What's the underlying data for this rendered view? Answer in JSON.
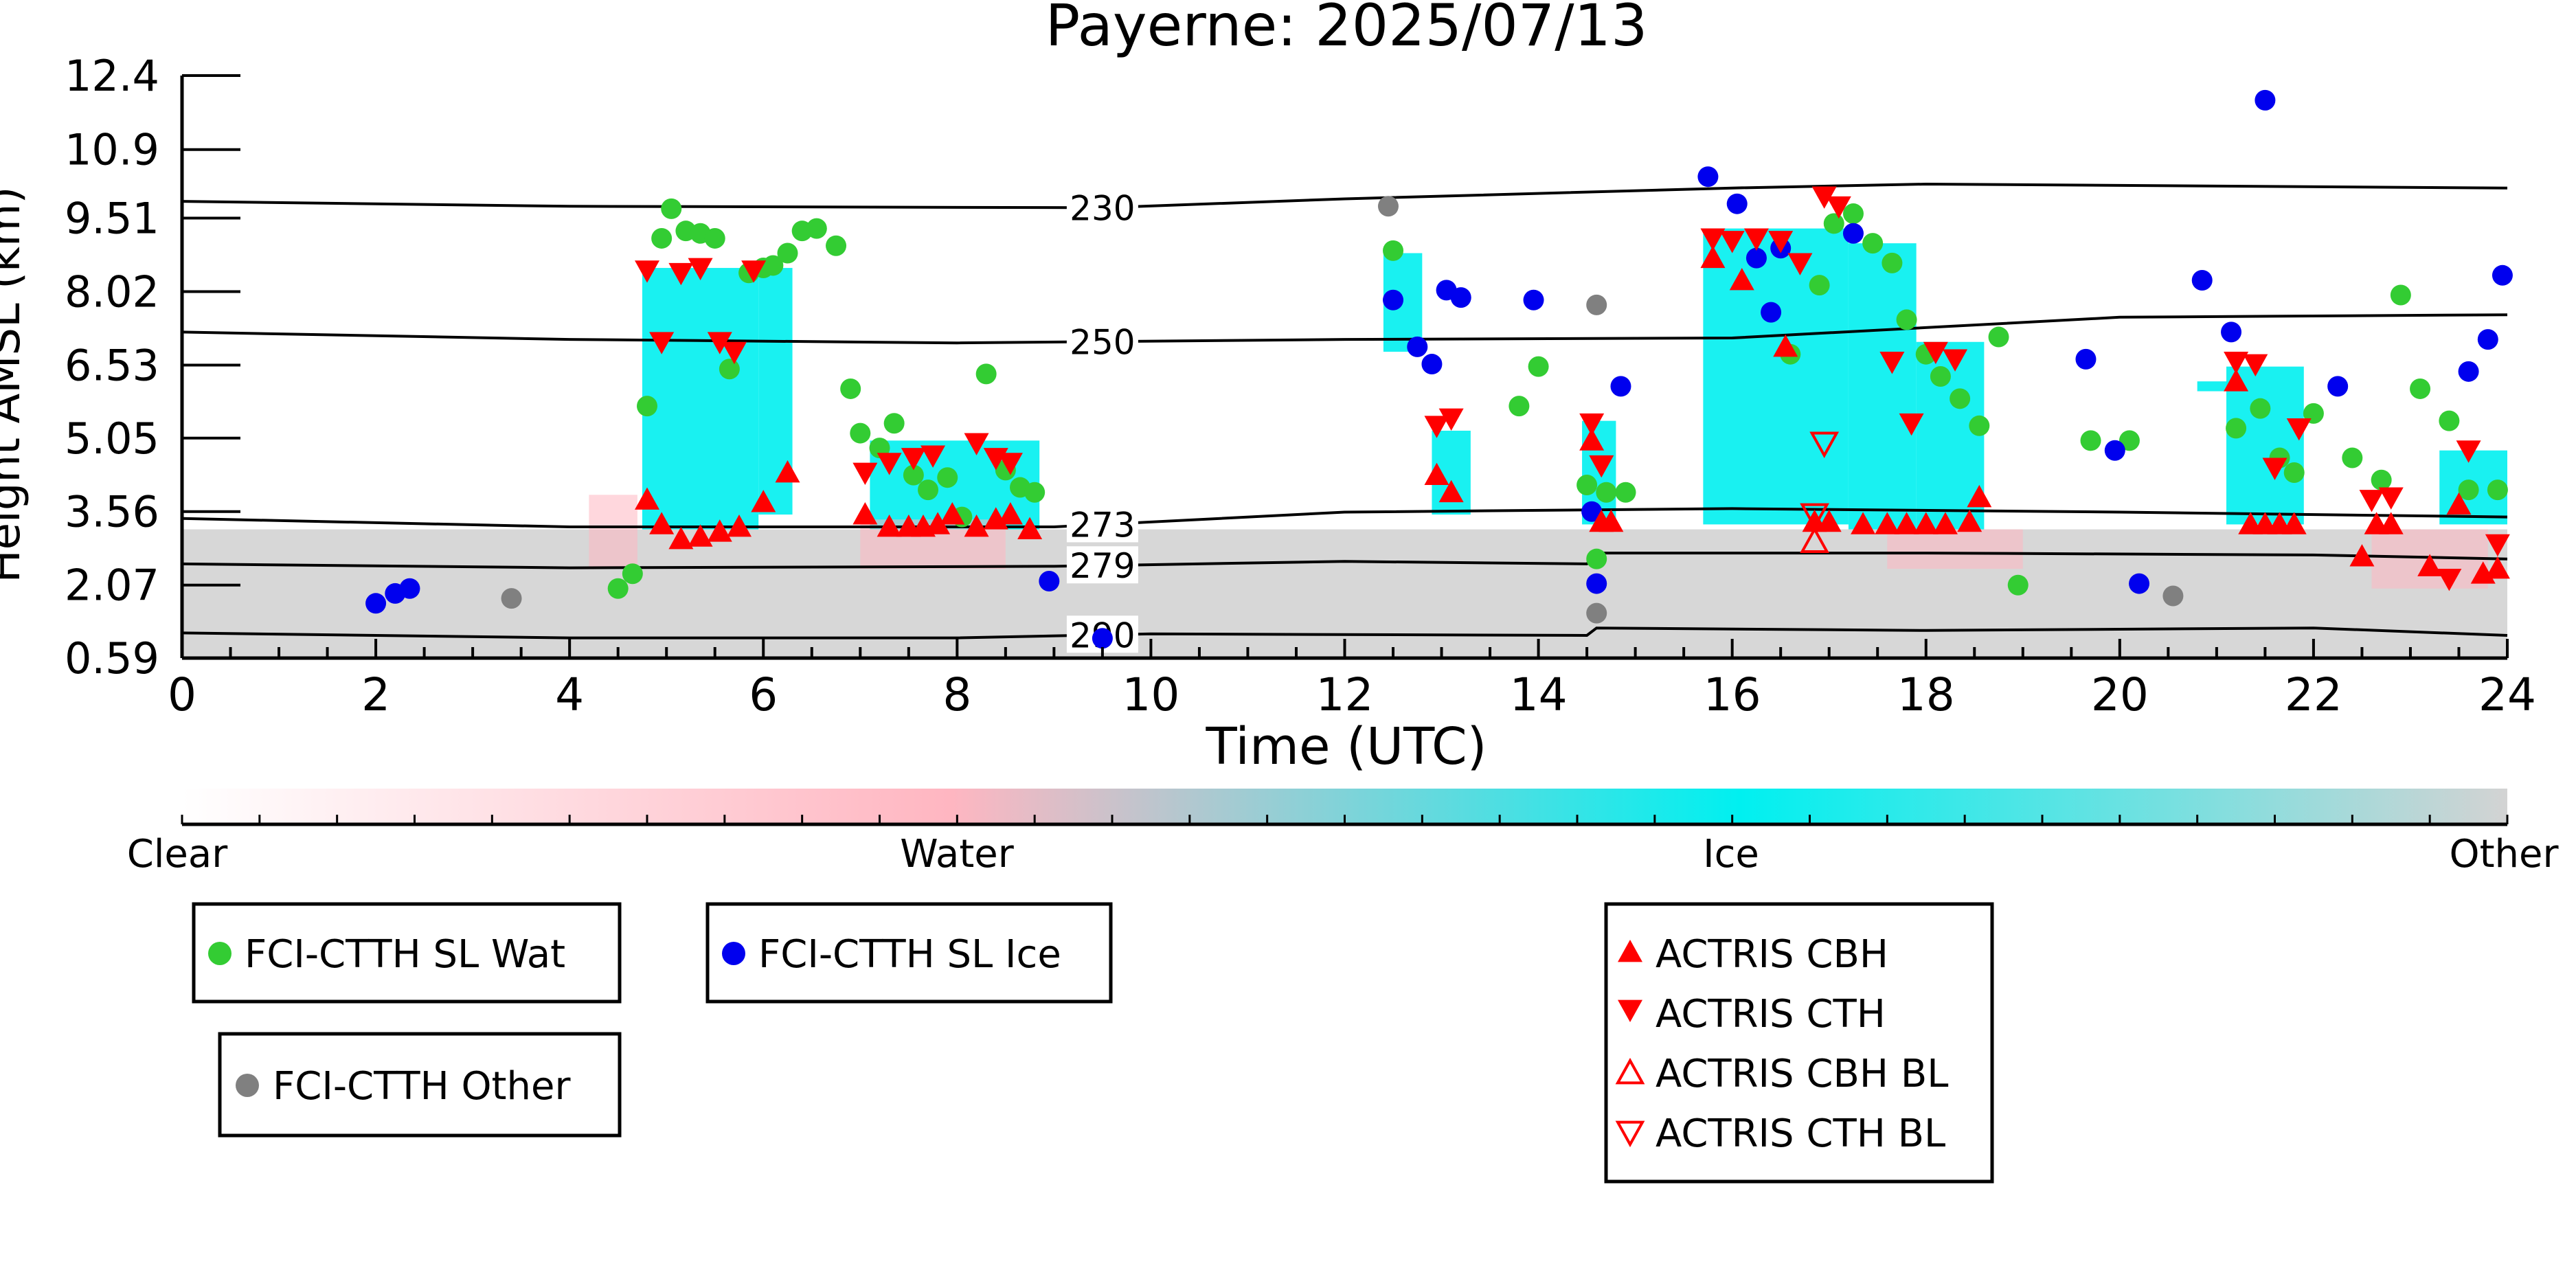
{
  "chart_data": {
    "type": "scatter",
    "title": "Payerne: 2025/07/13",
    "xlabel": "Time (UTC)",
    "ylabel": "Height AMSL (km)",
    "xlim": [
      0,
      24
    ],
    "ylim": [
      0.59,
      12.4
    ],
    "x_ticks": [
      0,
      2,
      4,
      6,
      8,
      10,
      12,
      14,
      16,
      18,
      20,
      22,
      24
    ],
    "y_ticks": [
      "0.59",
      "2.07",
      "3.56",
      "5.05",
      "6.53",
      "8.02",
      "9.51",
      "10.9",
      "12.4"
    ],
    "colorbar": {
      "labels": [
        "Clear",
        "Water",
        "Ice",
        "Other"
      ],
      "colors": {
        "clear": "#ffffff",
        "water": "#ffb6c1",
        "ice": "#00f0f0",
        "other": "#d3d3d3"
      }
    },
    "isotherms": [
      {
        "label": "230",
        "points": [
          [
            0,
            9.85
          ],
          [
            4,
            9.75
          ],
          [
            9.5,
            9.72
          ],
          [
            12,
            9.9
          ],
          [
            16,
            10.12
          ],
          [
            18,
            10.2
          ],
          [
            24,
            10.12
          ]
        ]
      },
      {
        "label": "250",
        "points": [
          [
            0,
            7.2
          ],
          [
            4,
            7.05
          ],
          [
            8,
            6.98
          ],
          [
            12,
            7.05
          ],
          [
            16,
            7.08
          ],
          [
            20,
            7.5
          ],
          [
            24,
            7.55
          ]
        ]
      },
      {
        "label": "273",
        "points": [
          [
            0,
            3.42
          ],
          [
            4,
            3.25
          ],
          [
            9,
            3.25
          ],
          [
            12,
            3.55
          ],
          [
            16,
            3.62
          ],
          [
            20,
            3.55
          ],
          [
            24,
            3.45
          ]
        ]
      },
      {
        "label": "279",
        "points": [
          [
            0,
            2.5
          ],
          [
            4,
            2.42
          ],
          [
            9,
            2.45
          ],
          [
            12,
            2.55
          ],
          [
            14.5,
            2.5
          ],
          [
            14.6,
            2.72
          ],
          [
            18,
            2.72
          ],
          [
            22,
            2.68
          ],
          [
            24,
            2.6
          ]
        ]
      },
      {
        "label": "290",
        "points": [
          [
            0,
            1.1
          ],
          [
            4,
            1.0
          ],
          [
            8,
            1.0
          ],
          [
            10,
            1.08
          ],
          [
            14.5,
            1.05
          ],
          [
            14.6,
            1.2
          ],
          [
            18,
            1.15
          ],
          [
            22,
            1.2
          ],
          [
            24,
            1.05
          ]
        ]
      }
    ],
    "classification_regions": [
      {
        "class": "other",
        "x": [
          0,
          24
        ],
        "y": [
          0.59,
          3.2
        ]
      },
      {
        "class": "ice",
        "x": [
          4.75,
          5.95
        ],
        "y": [
          3.2,
          8.5
        ]
      },
      {
        "class": "ice",
        "x": [
          5.95,
          6.3
        ],
        "y": [
          3.5,
          8.5
        ]
      },
      {
        "class": "ice",
        "x": [
          7.1,
          8.85
        ],
        "y": [
          3.2,
          5.0
        ]
      },
      {
        "class": "ice",
        "x": [
          12.4,
          12.8
        ],
        "y": [
          6.8,
          8.8
        ]
      },
      {
        "class": "ice",
        "x": [
          12.9,
          13.3
        ],
        "y": [
          3.5,
          5.2
        ]
      },
      {
        "class": "ice",
        "x": [
          14.45,
          14.8
        ],
        "y": [
          3.3,
          5.4
        ]
      },
      {
        "class": "ice",
        "x": [
          15.7,
          17.2
        ],
        "y": [
          3.3,
          9.3
        ]
      },
      {
        "class": "ice",
        "x": [
          17.2,
          17.9
        ],
        "y": [
          3.2,
          9.0
        ]
      },
      {
        "class": "ice",
        "x": [
          17.9,
          18.6
        ],
        "y": [
          3.2,
          7.0
        ]
      },
      {
        "class": "ice",
        "x": [
          20.8,
          21.2
        ],
        "y": [
          6.0,
          6.2
        ]
      },
      {
        "class": "ice",
        "x": [
          21.1,
          21.9
        ],
        "y": [
          3.3,
          6.5
        ]
      },
      {
        "class": "ice",
        "x": [
          23.3,
          24
        ],
        "y": [
          3.3,
          4.8
        ]
      },
      {
        "class": "water",
        "x": [
          4.2,
          4.7
        ],
        "y": [
          2.4,
          3.9
        ]
      },
      {
        "class": "water",
        "x": [
          7.0,
          8.5
        ],
        "y": [
          2.4,
          3.4
        ]
      },
      {
        "class": "water",
        "x": [
          17.6,
          19.0
        ],
        "y": [
          2.4,
          3.2
        ]
      },
      {
        "class": "water",
        "x": [
          22.6,
          23.8
        ],
        "y": [
          2.0,
          3.2
        ]
      }
    ],
    "series": [
      {
        "name": "FCI-CTTH SL Wat",
        "color": "#33cc33",
        "marker": "circle",
        "x": [
          4.5,
          4.65,
          4.8,
          4.95,
          5.05,
          5.2,
          5.35,
          5.5,
          5.65,
          5.85,
          6.0,
          6.1,
          6.25,
          6.4,
          6.55,
          6.75,
          6.9,
          7.0,
          7.2,
          7.35,
          7.55,
          7.7,
          7.9,
          8.05,
          8.3,
          8.5,
          8.65,
          8.8,
          12.5,
          14.0,
          13.8,
          14.5,
          14.6,
          14.7,
          14.9,
          16.6,
          16.9,
          17.05,
          17.25,
          17.45,
          17.65,
          17.8,
          18.0,
          18.15,
          18.35,
          18.55,
          18.75,
          18.95,
          19.7,
          20.1,
          21.2,
          21.45,
          21.65,
          21.8,
          22.0,
          22.4,
          22.7,
          22.9,
          23.1,
          23.4,
          23.6,
          23.9
        ],
        "y": [
          2.0,
          2.3,
          5.7,
          9.1,
          9.7,
          9.25,
          9.2,
          9.1,
          6.45,
          8.4,
          8.5,
          8.55,
          8.8,
          9.25,
          9.3,
          8.95,
          6.05,
          5.15,
          4.85,
          5.35,
          4.3,
          4.0,
          4.25,
          3.45,
          6.35,
          4.4,
          4.05,
          3.95,
          8.85,
          6.5,
          5.7,
          4.1,
          2.6,
          3.95,
          3.95,
          6.75,
          8.15,
          9.4,
          9.6,
          9.0,
          8.6,
          7.45,
          6.75,
          6.3,
          5.85,
          5.3,
          7.1,
          2.07,
          5.0,
          5.0,
          5.25,
          5.65,
          4.65,
          4.35,
          5.55,
          4.65,
          4.2,
          7.95,
          6.05,
          5.4,
          4.0,
          4.0
        ]
      },
      {
        "name": "FCI-CTTH SL Ice",
        "color": "#0000ee",
        "marker": "circle",
        "x": [
          2.0,
          2.2,
          2.35,
          8.95,
          9.5,
          12.5,
          12.75,
          12.9,
          13.05,
          13.2,
          13.95,
          14.55,
          14.6,
          14.85,
          15.75,
          16.05,
          16.25,
          16.4,
          16.5,
          17.25,
          19.65,
          19.95,
          20.2,
          20.85,
          21.15,
          21.5,
          22.25,
          23.6,
          23.8,
          23.95
        ],
        "y": [
          1.7,
          1.9,
          2.0,
          2.15,
          0.99,
          7.85,
          6.9,
          6.55,
          8.05,
          7.9,
          7.85,
          3.56,
          2.1,
          6.1,
          10.35,
          9.8,
          8.7,
          7.6,
          8.9,
          9.2,
          6.65,
          4.8,
          2.1,
          8.25,
          7.2,
          11.9,
          6.1,
          6.4,
          7.05,
          8.35
        ]
      },
      {
        "name": "FCI-CTTH Other",
        "color": "#808080",
        "marker": "circle",
        "x": [
          3.4,
          12.45,
          14.6,
          14.6,
          20.55
        ],
        "y": [
          1.8,
          9.75,
          7.75,
          1.5,
          1.85
        ]
      },
      {
        "name": "ACTRIS CBH",
        "color": "#ff0000",
        "marker": "triangle-up",
        "x": [
          4.8,
          4.95,
          5.15,
          5.35,
          5.55,
          5.75,
          6.0,
          6.25,
          7.05,
          7.3,
          7.5,
          7.65,
          7.8,
          7.95,
          8.2,
          8.4,
          8.55,
          8.75,
          12.95,
          13.1,
          14.55,
          14.65,
          14.75,
          15.8,
          16.1,
          16.55,
          16.85,
          17.0,
          17.35,
          17.6,
          17.8,
          18.0,
          18.2,
          18.45,
          18.55,
          21.2,
          21.35,
          21.5,
          21.65,
          21.8,
          22.5,
          22.65,
          22.8,
          23.2,
          23.5,
          23.75,
          23.9
        ],
        "y": [
          3.8,
          3.3,
          3.0,
          3.05,
          3.15,
          3.25,
          3.75,
          4.35,
          3.5,
          3.25,
          3.25,
          3.25,
          3.3,
          3.5,
          3.25,
          3.4,
          3.5,
          3.2,
          4.3,
          3.95,
          5.0,
          3.35,
          3.35,
          8.7,
          8.25,
          6.9,
          3.35,
          3.35,
          3.3,
          3.3,
          3.3,
          3.3,
          3.3,
          3.35,
          3.85,
          6.2,
          3.3,
          3.3,
          3.3,
          3.3,
          2.65,
          3.3,
          3.3,
          2.45,
          3.7,
          2.3,
          2.4
        ]
      },
      {
        "name": "ACTRIS CTH",
        "color": "#ff0000",
        "marker": "triangle-down",
        "x": [
          4.8,
          4.95,
          5.15,
          5.35,
          5.55,
          5.7,
          5.9,
          7.05,
          7.3,
          7.55,
          7.75,
          8.2,
          8.4,
          8.55,
          12.95,
          13.1,
          14.55,
          14.65,
          15.8,
          16.0,
          16.25,
          16.5,
          16.7,
          16.95,
          17.1,
          17.65,
          17.85,
          18.1,
          18.3,
          21.2,
          21.4,
          21.6,
          21.85,
          22.6,
          22.8,
          23.4,
          23.6,
          23.9
        ],
        "y": [
          8.45,
          7.0,
          8.4,
          8.5,
          7.0,
          6.8,
          8.45,
          4.35,
          4.55,
          4.65,
          4.7,
          4.95,
          4.65,
          4.55,
          5.3,
          5.45,
          5.35,
          4.5,
          9.1,
          9.05,
          9.1,
          9.05,
          8.6,
          9.95,
          9.75,
          6.6,
          5.35,
          6.8,
          6.65,
          6.6,
          6.55,
          4.45,
          5.25,
          3.8,
          3.85,
          2.2,
          4.8,
          2.9
        ]
      },
      {
        "name": "ACTRIS CBH BL",
        "color": "#ff0000",
        "marker": "triangle-up-open",
        "x": [
          16.85
        ],
        "y": [
          2.95
        ]
      },
      {
        "name": "ACTRIS CTH BL",
        "color": "#ff0000",
        "marker": "triangle-down-open",
        "x": [
          16.85,
          16.95
        ],
        "y": [
          3.5,
          4.95
        ]
      }
    ]
  }
}
